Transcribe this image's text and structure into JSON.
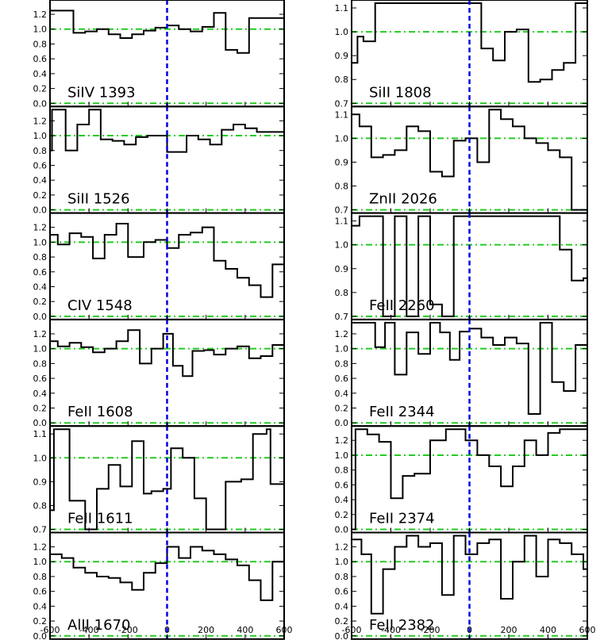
{
  "colors": {
    "frame": "#000000",
    "spectrum": "#000000",
    "zero_line": "#0000dd",
    "reference_line": "#22cc22"
  },
  "x_ticks": [
    "-600",
    "-400",
    "-200",
    "0",
    "200",
    "400",
    "600"
  ],
  "chart_data": [
    {
      "type": "line",
      "label": "SiIV 1393",
      "column": 0,
      "row": 0,
      "xlim": [
        -600,
        600
      ],
      "ylim": [
        0,
        1.35
      ],
      "y_ticks": [
        "0.0",
        "0.2",
        "0.4",
        "0.6",
        "0.8",
        "1.0",
        "1.2"
      ],
      "y_tick_values": [
        0,
        0.2,
        0.4,
        0.6,
        0.8,
        1.0,
        1.2
      ],
      "ref_lines": [
        1.0,
        0.0
      ],
      "x": [
        -600,
        -575,
        -480,
        -420,
        -360,
        -300,
        -240,
        -180,
        -120,
        -60,
        0,
        60,
        120,
        180,
        240,
        300,
        360,
        420,
        480,
        540,
        600
      ],
      "y": [
        1.25,
        1.25,
        0.95,
        0.97,
        1.0,
        0.93,
        0.88,
        0.93,
        0.98,
        1.02,
        1.05,
        1.0,
        0.97,
        1.03,
        1.22,
        0.72,
        0.68,
        1.15,
        1.15,
        1.15,
        1.15
      ]
    },
    {
      "type": "line",
      "label": "SiII 1526",
      "column": 0,
      "row": 1,
      "xlim": [
        -600,
        600
      ],
      "ylim": [
        0,
        1.35
      ],
      "y_ticks": [
        "0.0",
        "0.2",
        "0.4",
        "0.6",
        "0.8",
        "1.0",
        "1.2"
      ],
      "y_tick_values": [
        0,
        0.2,
        0.4,
        0.6,
        0.8,
        1.0,
        1.2
      ],
      "ref_lines": [
        1.0,
        0.0
      ],
      "x": [
        -600,
        -590,
        -560,
        -520,
        -460,
        -400,
        -340,
        -280,
        -220,
        -160,
        -100,
        0,
        40,
        100,
        160,
        220,
        280,
        340,
        400,
        460,
        540
      ],
      "y": [
        0.8,
        1.35,
        1.35,
        0.8,
        1.15,
        1.35,
        0.95,
        0.93,
        0.88,
        0.98,
        1.0,
        0.78,
        0.78,
        1.0,
        0.95,
        0.88,
        1.08,
        1.15,
        1.1,
        1.05,
        1.05
      ]
    },
    {
      "type": "line",
      "label": "CIV 1548",
      "column": 0,
      "row": 2,
      "xlim": [
        -600,
        600
      ],
      "ylim": [
        0,
        1.35
      ],
      "y_ticks": [
        "0.0",
        "0.2",
        "0.4",
        "0.6",
        "0.8",
        "1.0",
        "1.2"
      ],
      "y_tick_values": [
        0,
        0.2,
        0.4,
        0.6,
        0.8,
        1.0,
        1.2
      ],
      "ref_lines": [
        1.0,
        0.0
      ],
      "x": [
        -600,
        -560,
        -500,
        -440,
        -380,
        -320,
        -260,
        -200,
        -120,
        -60,
        0,
        60,
        120,
        180,
        240,
        300,
        360,
        420,
        480,
        540
      ],
      "y": [
        1.1,
        0.97,
        1.12,
        1.07,
        0.78,
        1.1,
        1.25,
        0.8,
        1.0,
        1.03,
        0.92,
        1.1,
        1.13,
        1.2,
        0.75,
        0.64,
        0.52,
        0.42,
        0.26,
        0.7
      ]
    },
    {
      "type": "line",
      "label": "FeII 1608",
      "column": 0,
      "row": 3,
      "xlim": [
        -600,
        600
      ],
      "ylim": [
        0,
        1.35
      ],
      "y_ticks": [
        "0.0",
        "0.2",
        "0.4",
        "0.6",
        "0.8",
        "1.0",
        "1.2"
      ],
      "y_tick_values": [
        0,
        0.2,
        0.4,
        0.6,
        0.8,
        1.0,
        1.2
      ],
      "ref_lines": [
        1.0,
        0.0
      ],
      "x": [
        -600,
        -560,
        -500,
        -440,
        -380,
        -320,
        -260,
        -200,
        -140,
        -80,
        -20,
        30,
        80,
        130,
        190,
        240,
        300,
        360,
        420,
        480,
        540
      ],
      "y": [
        1.1,
        1.03,
        1.08,
        1.02,
        0.95,
        1.0,
        1.1,
        1.25,
        0.8,
        1.0,
        1.2,
        0.77,
        0.63,
        0.97,
        0.98,
        0.92,
        1.0,
        1.03,
        0.87,
        0.9,
        1.05
      ]
    },
    {
      "type": "line",
      "label": "FeII 1611",
      "column": 0,
      "row": 4,
      "xlim": [
        -600,
        600
      ],
      "ylim": [
        0.7,
        1.12
      ],
      "y_ticks": [
        "0.7",
        "0.8",
        "0.9",
        "1.0",
        "1.1"
      ],
      "y_tick_values": [
        0.7,
        0.8,
        0.9,
        1.0,
        1.1
      ],
      "ref_lines": [
        1.0,
        0.7
      ],
      "x": [
        -600,
        -580,
        -500,
        -420,
        -360,
        -300,
        -240,
        -180,
        -120,
        -80,
        -20,
        20,
        80,
        140,
        200,
        260,
        300,
        380,
        440,
        510,
        530
      ],
      "y": [
        0.78,
        1.12,
        0.82,
        0.7,
        0.87,
        0.97,
        0.88,
        1.07,
        0.85,
        0.86,
        0.87,
        1.04,
        1.0,
        0.83,
        0.7,
        0.7,
        0.9,
        0.91,
        1.1,
        1.12,
        0.89
      ]
    },
    {
      "type": "line",
      "label": "AlII 1670",
      "column": 0,
      "row": 5,
      "xlim": [
        -600,
        600
      ],
      "ylim": [
        0,
        1.35
      ],
      "y_ticks": [
        "0.0",
        "0.2",
        "0.4",
        "0.6",
        "0.8",
        "1.0",
        "1.2"
      ],
      "y_tick_values": [
        0,
        0.2,
        0.4,
        0.6,
        0.8,
        1.0,
        1.2
      ],
      "ref_lines": [
        1.0,
        0.0
      ],
      "x": [
        -600,
        -540,
        -480,
        -420,
        -360,
        -300,
        -240,
        -180,
        -120,
        -60,
        0,
        60,
        120,
        180,
        240,
        300,
        360,
        420,
        480,
        540
      ],
      "y": [
        1.1,
        1.05,
        0.92,
        0.85,
        0.8,
        0.78,
        0.72,
        0.62,
        0.85,
        0.98,
        1.2,
        1.05,
        1.2,
        1.15,
        1.1,
        1.03,
        0.95,
        0.75,
        0.48,
        1.0
      ]
    },
    {
      "type": "line",
      "label": "SiII 1808",
      "column": 1,
      "row": 0,
      "xlim": [
        -600,
        600
      ],
      "ylim": [
        0.7,
        1.12
      ],
      "y_ticks": [
        "0.7",
        "0.8",
        "0.9",
        "1.0",
        "1.1"
      ],
      "y_tick_values": [
        0.7,
        0.8,
        0.9,
        1.0,
        1.1
      ],
      "ref_lines": [
        1.0,
        0.7
      ],
      "x": [
        -600,
        -570,
        -540,
        -480,
        -420,
        -360,
        -300,
        -240,
        -180,
        -120,
        -60,
        0,
        60,
        120,
        180,
        240,
        300,
        360,
        420,
        480,
        540,
        600
      ],
      "y": [
        0.87,
        0.98,
        0.96,
        1.12,
        1.12,
        1.12,
        1.12,
        1.12,
        1.12,
        1.12,
        1.12,
        1.12,
        0.93,
        0.88,
        1.0,
        1.01,
        0.79,
        0.8,
        0.84,
        0.87,
        1.12,
        1.12
      ]
    },
    {
      "type": "line",
      "label": "ZnII 2026",
      "column": 1,
      "row": 1,
      "xlim": [
        -600,
        600
      ],
      "ylim": [
        0.7,
        1.12
      ],
      "y_ticks": [
        "0.7",
        "0.8",
        "0.9",
        "1.0",
        "1.1"
      ],
      "y_tick_values": [
        0.7,
        0.8,
        0.9,
        1.0,
        1.1
      ],
      "ref_lines": [
        1.0,
        0.7
      ],
      "x": [
        -600,
        -560,
        -500,
        -440,
        -380,
        -320,
        -260,
        -200,
        -140,
        -80,
        -20,
        40,
        100,
        160,
        220,
        280,
        340,
        400,
        460,
        520,
        580
      ],
      "y": [
        1.1,
        1.05,
        0.92,
        0.93,
        0.95,
        1.05,
        1.03,
        0.86,
        0.84,
        0.99,
        1.0,
        0.9,
        1.12,
        1.08,
        1.05,
        1.0,
        0.98,
        0.95,
        0.92,
        0.7,
        0.7
      ]
    },
    {
      "type": "line",
      "label": "FeII 2260",
      "column": 1,
      "row": 2,
      "xlim": [
        -600,
        600
      ],
      "ylim": [
        0.7,
        1.12
      ],
      "y_ticks": [
        "0.7",
        "0.8",
        "0.9",
        "1.0",
        "1.1"
      ],
      "y_tick_values": [
        0.7,
        0.8,
        0.9,
        1.0,
        1.1
      ],
      "ref_lines": [
        1.0,
        0.7
      ],
      "x": [
        -600,
        -560,
        -500,
        -440,
        -380,
        -320,
        -260,
        -200,
        -140,
        -80,
        -20,
        40,
        100,
        160,
        220,
        280,
        340,
        400,
        460,
        520,
        580
      ],
      "y": [
        1.08,
        1.12,
        1.12,
        0.7,
        1.12,
        0.7,
        1.12,
        0.75,
        0.7,
        1.12,
        1.12,
        1.12,
        1.12,
        1.12,
        1.12,
        1.12,
        1.12,
        1.12,
        0.98,
        0.85,
        0.86
      ]
    },
    {
      "type": "line",
      "label": "FeII 2344",
      "column": 1,
      "row": 3,
      "xlim": [
        -600,
        600
      ],
      "ylim": [
        0,
        1.35
      ],
      "y_ticks": [
        "0.0",
        "0.2",
        "0.4",
        "0.6",
        "0.8",
        "1.0",
        "1.2"
      ],
      "y_tick_values": [
        0,
        0.2,
        0.4,
        0.6,
        0.8,
        1.0,
        1.2
      ],
      "ref_lines": [
        1.0,
        0.0
      ],
      "x": [
        -600,
        -550,
        -480,
        -430,
        -380,
        -320,
        -260,
        -200,
        -150,
        -100,
        -50,
        0,
        60,
        120,
        180,
        240,
        300,
        360,
        420,
        480,
        540,
        600
      ],
      "y": [
        1.35,
        1.35,
        1.02,
        1.35,
        0.65,
        1.22,
        0.93,
        1.35,
        1.22,
        0.85,
        1.23,
        1.27,
        1.15,
        1.05,
        1.15,
        1.07,
        0.12,
        1.35,
        0.55,
        0.43,
        1.05,
        1.05
      ]
    },
    {
      "type": "line",
      "label": "FeII 2374",
      "column": 1,
      "row": 4,
      "xlim": [
        -600,
        600
      ],
      "ylim": [
        0,
        1.35
      ],
      "y_ticks": [
        "0.0",
        "0.2",
        "0.4",
        "0.6",
        "0.8",
        "1.0",
        "1.2"
      ],
      "y_tick_values": [
        0,
        0.2,
        0.4,
        0.6,
        0.8,
        1.0,
        1.2
      ],
      "ref_lines": [
        1.0,
        0.0
      ],
      "x": [
        -600,
        -580,
        -520,
        -460,
        -400,
        -340,
        -280,
        -200,
        -120,
        -80,
        -20,
        40,
        100,
        160,
        220,
        280,
        340,
        400,
        460,
        520,
        580
      ],
      "y": [
        0.0,
        1.35,
        1.28,
        1.18,
        0.42,
        0.72,
        0.75,
        1.2,
        1.35,
        1.35,
        1.2,
        1.0,
        0.85,
        0.58,
        0.85,
        1.2,
        1.0,
        1.3,
        1.35,
        1.35,
        1.35
      ]
    },
    {
      "type": "line",
      "label": "FeII 2382",
      "column": 1,
      "row": 5,
      "xlim": [
        -600,
        600
      ],
      "ylim": [
        0,
        1.35
      ],
      "y_ticks": [
        "0.0",
        "0.2",
        "0.4",
        "0.6",
        "0.8",
        "1.0",
        "1.2"
      ],
      "y_tick_values": [
        0,
        0.2,
        0.4,
        0.6,
        0.8,
        1.0,
        1.2
      ],
      "ref_lines": [
        1.0,
        0.0
      ],
      "x": [
        -600,
        -550,
        -500,
        -440,
        -380,
        -320,
        -260,
        -200,
        -140,
        -80,
        -20,
        40,
        100,
        160,
        220,
        280,
        340,
        400,
        460,
        520,
        580,
        600
      ],
      "y": [
        1.3,
        1.1,
        0.3,
        0.9,
        1.2,
        1.35,
        1.2,
        1.25,
        0.55,
        1.35,
        1.1,
        1.25,
        1.3,
        0.5,
        1.0,
        1.35,
        0.8,
        1.3,
        1.25,
        1.1,
        0.9,
        0.8
      ]
    }
  ]
}
